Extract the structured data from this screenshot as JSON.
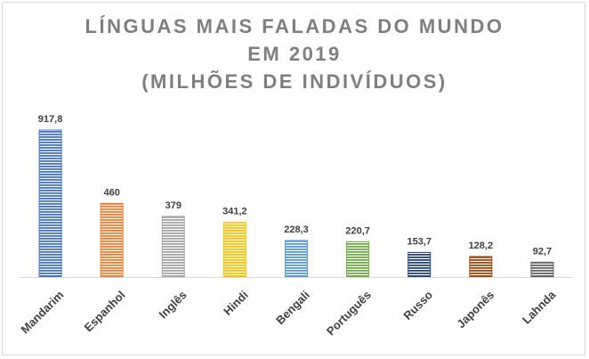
{
  "chart_data": {
    "type": "bar",
    "title_lines": [
      "LÍNGUAS MAIS FALADAS DO MUNDO",
      "EM 2019",
      "(MILHÕES DE INDIVÍDUOS)"
    ],
    "categories": [
      "Mandarim",
      "Espanhol",
      "Inglês",
      "Hindi",
      "Bengali",
      "Português",
      "Russo",
      "Japonês",
      "Lahnda"
    ],
    "values": [
      917.8,
      460,
      379,
      341.2,
      228.3,
      220.7,
      153.7,
      128.2,
      92.7
    ],
    "value_labels": [
      "917,8",
      "460",
      "379",
      "341,2",
      "228,3",
      "220,7",
      "153,7",
      "128,2",
      "92,7"
    ],
    "colors": [
      "#4472c4",
      "#ed7d31",
      "#a5a5a5",
      "#ffc000",
      "#5b9bd5",
      "#70ad47",
      "#264478",
      "#9e480e",
      "#636363"
    ],
    "ylim": [
      0,
      917.8
    ],
    "grid": false,
    "legend": false,
    "xlabel": "",
    "ylabel": ""
  }
}
